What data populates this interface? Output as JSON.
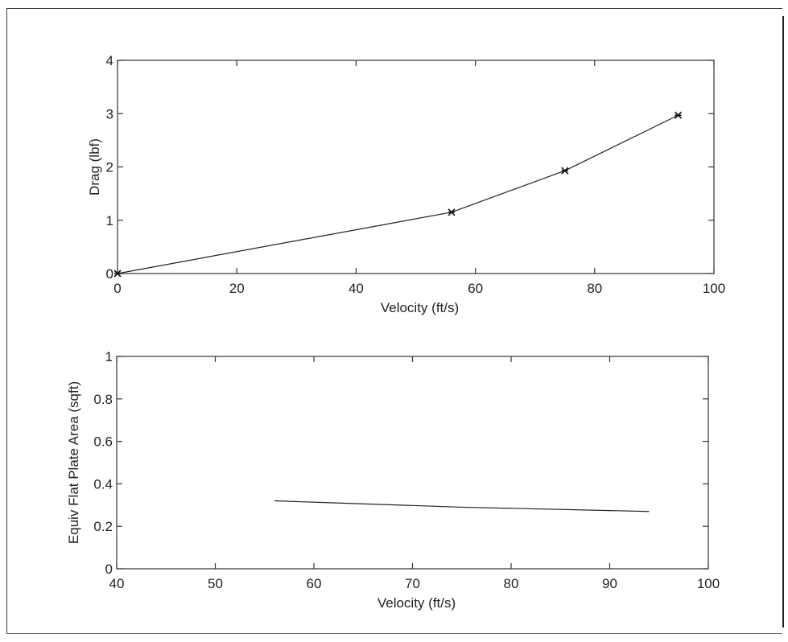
{
  "chart_data": [
    {
      "type": "line",
      "xlabel": "Velocity (ft/s)",
      "ylabel": "Drag (lbf)",
      "xlim": [
        0,
        100
      ],
      "ylim": [
        0,
        4
      ],
      "xticks": [
        0,
        20,
        40,
        60,
        80,
        100
      ],
      "yticks": [
        0,
        1,
        2,
        3,
        4
      ],
      "grid": false,
      "marker": "x",
      "series": [
        {
          "x": [
            0,
            56,
            75,
            94
          ],
          "y": [
            0,
            1.15,
            1.93,
            2.97
          ]
        }
      ]
    },
    {
      "type": "line",
      "xlabel": "Velocity (ft/s)",
      "ylabel": "Equiv Flat Plate Area (sqft)",
      "xlim": [
        40,
        100
      ],
      "ylim": [
        0,
        1
      ],
      "xticks": [
        40,
        50,
        60,
        70,
        80,
        90,
        100
      ],
      "yticks": [
        0,
        0.2,
        0.4,
        0.6,
        0.8,
        1
      ],
      "grid": false,
      "marker": "none",
      "series": [
        {
          "x": [
            56,
            75,
            94
          ],
          "y": [
            0.32,
            0.29,
            0.27
          ]
        }
      ]
    }
  ]
}
